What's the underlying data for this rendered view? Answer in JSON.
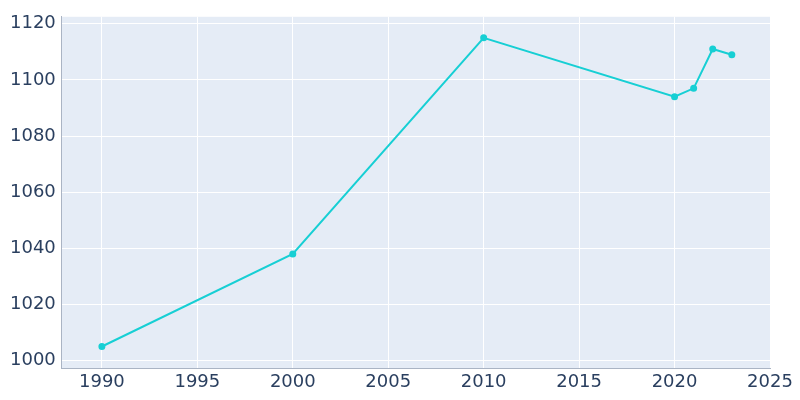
{
  "chart_data": {
    "type": "line",
    "x": [
      1990,
      2000,
      2010,
      2020,
      2021,
      2022,
      2023
    ],
    "values": [
      1005,
      1038,
      1115,
      1094,
      1097,
      1111,
      1109
    ],
    "color": "#17cfd4",
    "marker": "circle",
    "xlim": [
      1987.9,
      2025
    ],
    "xticks": [
      1990,
      1995,
      2000,
      2005,
      2010,
      2015,
      2020,
      2025
    ],
    "ylim": [
      997.2,
      1122.5
    ],
    "yticks": [
      1000,
      1020,
      1040,
      1060,
      1080,
      1100,
      1120
    ],
    "grid": true
  }
}
